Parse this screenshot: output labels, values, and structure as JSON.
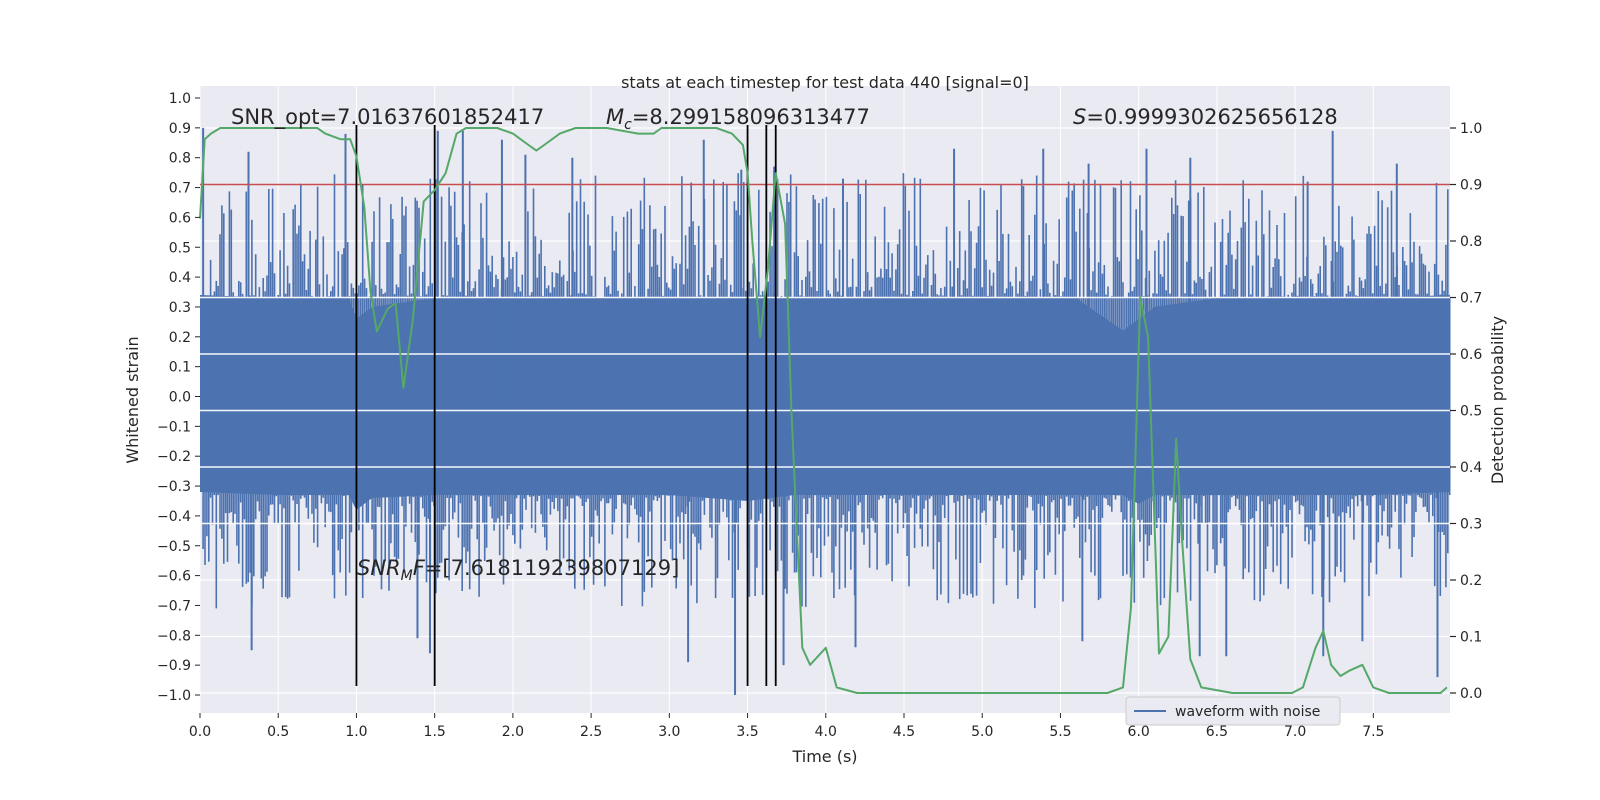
{
  "chart_data": {
    "type": "line",
    "title": "stats at each timestep for test data 440 [signal=0]",
    "xlabel": "Time (s)",
    "ylabel": "Whitened strain",
    "y2label": "Detection probability",
    "xlim": [
      0.0,
      7.99
    ],
    "ylim": [
      -1.09,
      1.0
    ],
    "y2lim": [
      -0.05,
      1.045
    ],
    "xticks": [
      "0.0",
      "0.5",
      "1.0",
      "1.5",
      "2.0",
      "2.5",
      "3.0",
      "3.5",
      "4.0",
      "4.5",
      "5.0",
      "5.5",
      "6.0",
      "6.5",
      "7.0",
      "7.5"
    ],
    "yticks": [
      "1.0",
      "0.9",
      "0.8",
      "0.7",
      "0.6",
      "0.5",
      "0.4",
      "0.3",
      "0.2",
      "0.1",
      "0.0",
      "−0.1",
      "−0.2",
      "−0.3",
      "−0.4",
      "−0.5",
      "−0.6",
      "−0.7",
      "−0.8",
      "−0.9",
      "−1.0"
    ],
    "y2ticks": [
      "1.0",
      "0.9",
      "0.8",
      "0.7",
      "0.6",
      "0.5",
      "0.4",
      "0.3",
      "0.2",
      "0.1",
      "0.0"
    ],
    "grid": true,
    "legend_position": "lower-right",
    "colors": {
      "waveform": "#4c72b0",
      "probability": "#55a868",
      "threshold": "#c44e52",
      "markers": "#000000",
      "background": "#eaeaf2",
      "grid": "#ffffff"
    },
    "series": [
      {
        "name": "waveform with noise",
        "axis": "left",
        "color": "#4c72b0",
        "envelope": {
          "x": [
            0.0,
            0.5,
            0.95,
            1.0,
            1.1,
            1.5,
            2.0,
            2.5,
            3.0,
            3.5,
            3.8,
            4.0,
            5.0,
            5.6,
            5.9,
            6.0,
            6.1,
            6.5,
            7.0,
            7.5,
            7.99
          ],
          "max": [
            0.34,
            0.33,
            0.33,
            0.26,
            0.3,
            0.33,
            0.33,
            0.33,
            0.33,
            0.33,
            0.33,
            0.33,
            0.33,
            0.33,
            0.22,
            0.26,
            0.3,
            0.33,
            0.33,
            0.33,
            0.34
          ],
          "min": [
            -0.32,
            -0.33,
            -0.33,
            -0.38,
            -0.34,
            -0.33,
            -0.33,
            -0.33,
            -0.33,
            -0.35,
            -0.33,
            -0.33,
            -0.33,
            -0.33,
            -0.33,
            -0.36,
            -0.33,
            -0.33,
            -0.33,
            -0.33,
            -0.32
          ]
        },
        "spikes_up": [
          [
            0.02,
            0.9
          ],
          [
            0.31,
            0.82
          ],
          [
            0.93,
            0.88
          ],
          [
            1.52,
            0.89
          ],
          [
            1.68,
            0.89
          ],
          [
            1.93,
            0.86
          ],
          [
            2.08,
            0.81
          ],
          [
            2.38,
            0.8
          ],
          [
            3.22,
            0.86
          ],
          [
            3.46,
            0.76
          ],
          [
            3.67,
            0.77
          ],
          [
            4.11,
            0.73
          ],
          [
            4.82,
            0.83
          ],
          [
            5.39,
            0.83
          ],
          [
            5.68,
            0.78
          ],
          [
            6.05,
            0.83
          ],
          [
            6.33,
            0.8
          ],
          [
            7.08,
            0.72
          ],
          [
            7.24,
            0.89
          ],
          [
            7.65,
            0.78
          ]
        ],
        "spikes_down": [
          [
            0.33,
            -0.85
          ],
          [
            1.39,
            -0.81
          ],
          [
            1.47,
            -0.86
          ],
          [
            3.12,
            -0.89
          ],
          [
            3.42,
            -1.0
          ],
          [
            3.73,
            -0.9
          ],
          [
            4.19,
            -0.84
          ],
          [
            5.64,
            -0.82
          ],
          [
            6.39,
            -0.87
          ],
          [
            6.56,
            -0.87
          ],
          [
            7.18,
            -0.87
          ],
          [
            7.43,
            -0.82
          ],
          [
            7.91,
            -0.94
          ]
        ]
      },
      {
        "name": "detection probability",
        "axis": "right",
        "color": "#55a868",
        "x": [
          0.0,
          0.03,
          0.07,
          0.13,
          0.2,
          0.5,
          0.75,
          0.8,
          0.9,
          0.96,
          1.0,
          1.05,
          1.09,
          1.13,
          1.2,
          1.25,
          1.3,
          1.36,
          1.43,
          1.5,
          1.57,
          1.64,
          1.7,
          1.8,
          1.9,
          2.0,
          2.1,
          2.15,
          2.2,
          2.3,
          2.4,
          2.6,
          2.8,
          2.9,
          2.95,
          3.05,
          3.3,
          3.4,
          3.47,
          3.5,
          3.53,
          3.58,
          3.63,
          3.68,
          3.74,
          3.78,
          3.85,
          3.9,
          4.0,
          4.07,
          4.2,
          5.0,
          5.5,
          5.8,
          5.9,
          5.95,
          6.01,
          6.06,
          6.13,
          6.19,
          6.24,
          6.28,
          6.33,
          6.4,
          6.6,
          6.85,
          6.98,
          7.05,
          7.13,
          7.18,
          7.23,
          7.29,
          7.35,
          7.43,
          7.5,
          7.6,
          7.8,
          7.93,
          7.97
        ],
        "y": [
          0.84,
          0.98,
          0.99,
          1.0,
          1.0,
          1.0,
          1.0,
          0.99,
          0.98,
          0.98,
          0.95,
          0.86,
          0.71,
          0.64,
          0.68,
          0.69,
          0.54,
          0.66,
          0.87,
          0.89,
          0.92,
          0.99,
          1.0,
          1.0,
          1.0,
          0.99,
          0.97,
          0.96,
          0.97,
          0.99,
          1.0,
          1.0,
          0.99,
          0.99,
          1.0,
          1.0,
          1.0,
          0.99,
          0.97,
          0.92,
          0.8,
          0.63,
          0.75,
          0.92,
          0.83,
          0.5,
          0.08,
          0.05,
          0.08,
          0.01,
          0.0,
          0.0,
          0.0,
          0.0,
          0.01,
          0.15,
          0.7,
          0.63,
          0.07,
          0.1,
          0.45,
          0.26,
          0.06,
          0.01,
          0.0,
          0.0,
          0.0,
          0.01,
          0.08,
          0.11,
          0.05,
          0.03,
          0.04,
          0.05,
          0.01,
          0.0,
          0.0,
          0.0,
          0.01
        ]
      }
    ],
    "threshold": {
      "axis": "right",
      "value": 0.9,
      "color": "#c44e52"
    },
    "vlines": [
      1.0,
      1.5,
      3.5,
      3.62,
      3.68
    ],
    "annotations": {
      "snr_opt_label": "SNR_opt=7.01637601852417",
      "mc_symbol": "M",
      "mc_subscript": "c",
      "mc_value": "=8.299158096313477",
      "s_symbol": "S",
      "s_value": "=0.9999302625656128",
      "snr_mf_symbol": "SNR",
      "snr_mf_subscript": "M",
      "snr_mf_symbol_tail": "F",
      "snr_mf_value": "=[7.618119239807129]"
    },
    "legend_label": "waveform with noise"
  }
}
